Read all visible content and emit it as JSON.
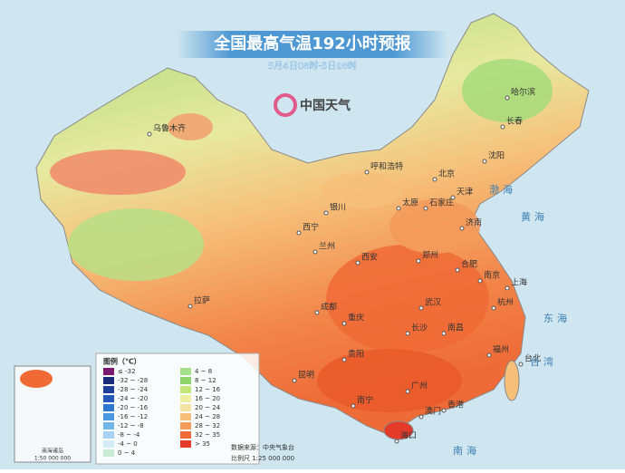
{
  "header": {
    "title": "全国最高气温192小时预报",
    "subtitle": "5月4日08时-5日08时",
    "logo": "中国天气"
  },
  "legend": {
    "title": "图例（℃）",
    "items": [
      {
        "label": "≤ -32",
        "color": "#7a1a6e"
      },
      {
        "label": "-32 ~ -28",
        "color": "#1a2a7a"
      },
      {
        "label": "-28 ~ -24",
        "color": "#1f3f9a"
      },
      {
        "label": "-24 ~ -20",
        "color": "#2458b8"
      },
      {
        "label": "-20 ~ -16",
        "color": "#2f78d0"
      },
      {
        "label": "-16 ~ -12",
        "color": "#4a98e0"
      },
      {
        "label": "-12 ~ -8",
        "color": "#74b6ea"
      },
      {
        "label": "-8 ~ -4",
        "color": "#a6d4f2"
      },
      {
        "label": "-4 ~ 0",
        "color": "#d4ecf8"
      },
      {
        "label": "0 ~ 4",
        "color": "#c8ecd6"
      },
      {
        "label": "4 ~ 8",
        "color": "#a6e08a"
      },
      {
        "label": "8 ~ 12",
        "color": "#8fd46a"
      },
      {
        "label": "12 ~ 16",
        "color": "#c4e67a"
      },
      {
        "label": "16 ~ 20",
        "color": "#eef0a0"
      },
      {
        "label": "20 ~ 24",
        "color": "#f6e3a4"
      },
      {
        "label": "24 ~ 28",
        "color": "#f6c07a"
      },
      {
        "label": "28 ~ 32",
        "color": "#f49a5a"
      },
      {
        "label": "32 ~ 35",
        "color": "#f06a36"
      },
      {
        "label": "> 35",
        "color": "#e43a2a"
      }
    ]
  },
  "footer": {
    "source": "数据来源：中央气象台",
    "scale": "比例尺 1:25 000 000"
  },
  "inset": {
    "title": "南海诸岛",
    "scale": "1:50 000 000"
  },
  "cities": [
    "乌鲁木齐",
    "哈尔滨",
    "长春",
    "沈阳",
    "呼和浩特",
    "北京",
    "天津",
    "石家庄",
    "太原",
    "银川",
    "济南",
    "西宁",
    "兰州",
    "郑州",
    "西安",
    "合肥",
    "南京",
    "上海",
    "拉萨",
    "成都",
    "武汉",
    "杭州",
    "重庆",
    "长沙",
    "南昌",
    "福州",
    "贵阳",
    "昆明",
    "广州",
    "南宁",
    "香港",
    "澳门",
    "海口",
    "台北"
  ],
  "seas": [
    "渤海",
    "黄海",
    "东海",
    "南海",
    "台湾"
  ]
}
